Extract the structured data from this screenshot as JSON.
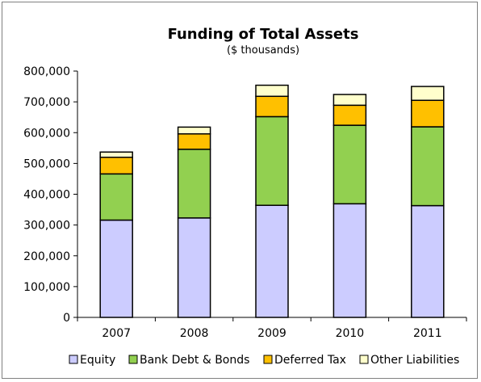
{
  "chart_data": {
    "type": "bar",
    "stacked": true,
    "title": "Funding of Total Assets",
    "subtitle": "($ thousands)",
    "xlabel": "",
    "ylabel": "",
    "categories": [
      "2007",
      "2008",
      "2009",
      "2010",
      "2011"
    ],
    "ylim": [
      0,
      800000
    ],
    "yticks": [
      0,
      100000,
      200000,
      300000,
      400000,
      500000,
      600000,
      700000,
      800000
    ],
    "ytick_labels": [
      "0",
      "100,000",
      "200,000",
      "300,000",
      "400,000",
      "500,000",
      "600,000",
      "700,000",
      "800,000"
    ],
    "grid": false,
    "legend_position": "bottom",
    "series": [
      {
        "name": "Equity",
        "color": "#ccccff",
        "values": [
          316000,
          323000,
          364000,
          369000,
          363000
        ]
      },
      {
        "name": "Bank Debt & Bonds",
        "color": "#92d050",
        "values": [
          150000,
          223000,
          288000,
          255000,
          256000
        ]
      },
      {
        "name": "Deferred Tax",
        "color": "#ffc000",
        "values": [
          54000,
          50000,
          66000,
          65000,
          86000
        ]
      },
      {
        "name": "Other Liabilities",
        "color": "#ffffcc",
        "values": [
          17000,
          22000,
          36000,
          35000,
          45000
        ]
      }
    ]
  }
}
